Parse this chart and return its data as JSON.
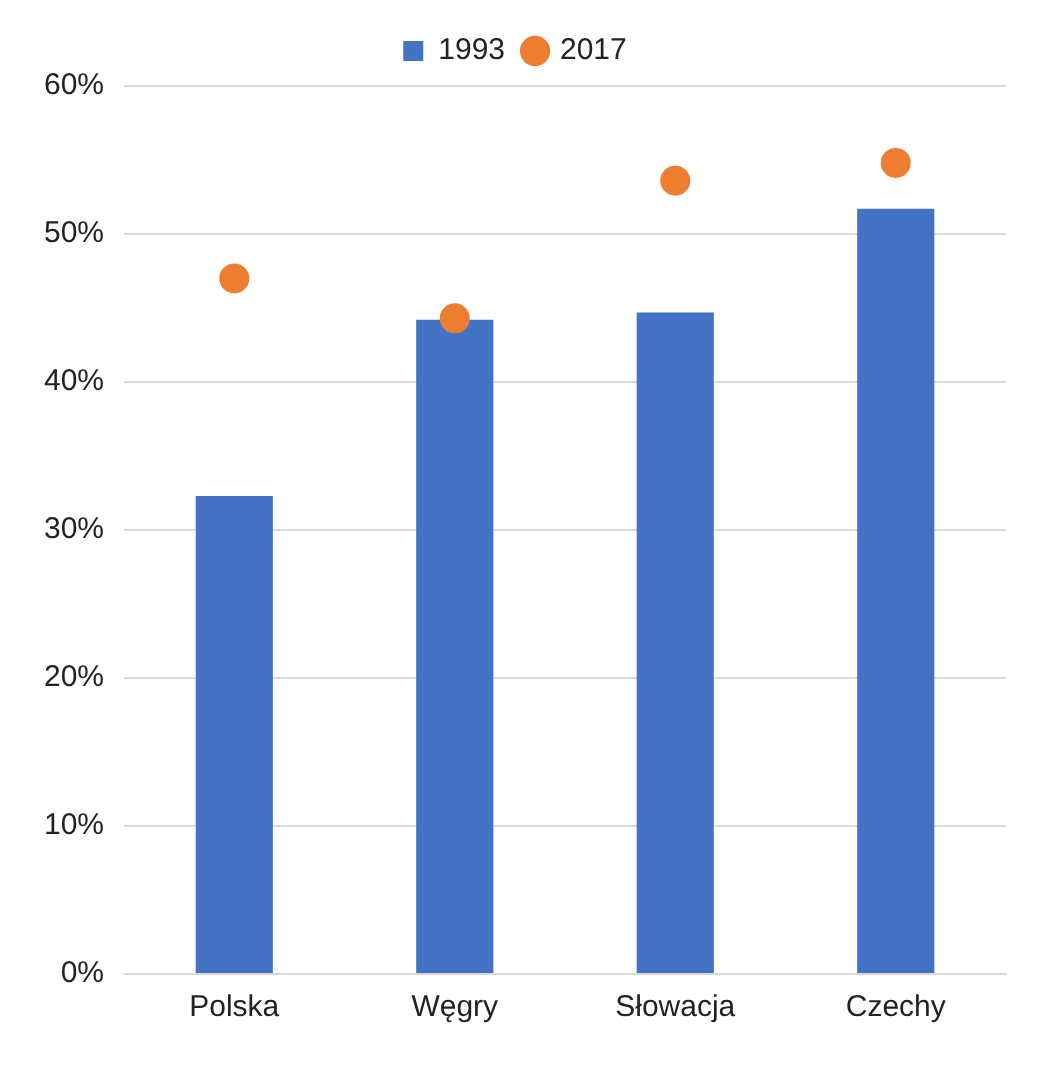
{
  "chart_data": {
    "type": "bar",
    "categories": [
      "Polska",
      "Węgry",
      "Słowacja",
      "Czechy"
    ],
    "series": [
      {
        "name": "1993",
        "color": "#4472c4",
        "values": [
          32.3,
          44.2,
          44.7,
          51.7
        ]
      },
      {
        "name": "2017",
        "type": "scatter",
        "color": "#ed7d31",
        "marker": "circle",
        "values": [
          47,
          44.3,
          53.6,
          54.8
        ]
      }
    ],
    "ylim": [
      0,
      60
    ],
    "yticks": [
      {
        "value": 0,
        "label": "0%"
      },
      {
        "value": 10,
        "label": "10%"
      },
      {
        "value": 20,
        "label": "20%"
      },
      {
        "value": 30,
        "label": "30%"
      },
      {
        "value": 40,
        "label": "40%"
      },
      {
        "value": 50,
        "label": "50%"
      },
      {
        "value": 60,
        "label": "60%"
      }
    ],
    "grid": "y",
    "legend": "top"
  }
}
